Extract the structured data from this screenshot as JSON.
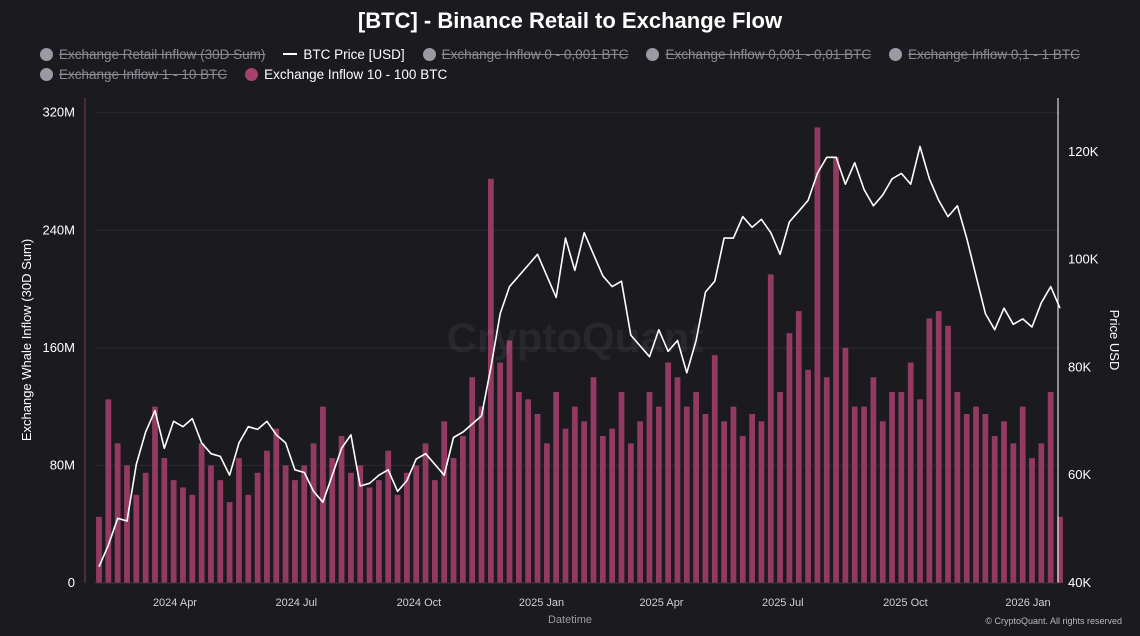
{
  "chart_data": {
    "type": "bar+line",
    "title": "[BTC] - Binance Retail to Exchange Flow",
    "xlabel": "Datetime",
    "ylabel_left": "Exchange Whale Inflow (30D Sum)",
    "ylabel_right": "Price USD",
    "watermark": "CryptoQuant",
    "credit": "© CryptoQuant. All rights reserved",
    "ylim_left": [
      0,
      330000000
    ],
    "ylim_right": [
      40000,
      130000
    ],
    "left_ticks": [
      {
        "value": 0,
        "label": "0"
      },
      {
        "value": 80000000,
        "label": "80M"
      },
      {
        "value": 160000000,
        "label": "160M"
      },
      {
        "value": 240000000,
        "label": "240M"
      },
      {
        "value": 320000000,
        "label": "320M"
      }
    ],
    "right_ticks": [
      {
        "value": 40000,
        "label": "40K"
      },
      {
        "value": 60000,
        "label": "60K"
      },
      {
        "value": 80000,
        "label": "80K"
      },
      {
        "value": 100000,
        "label": "100K"
      },
      {
        "value": 120000,
        "label": "120K"
      }
    ],
    "x_range": [
      "2024-02-01",
      "2026-01-25"
    ],
    "x_ticks": [
      {
        "date": "2024-04-01",
        "label": "2024 Apr"
      },
      {
        "date": "2024-07-01",
        "label": "2024 Jul"
      },
      {
        "date": "2024-10-01",
        "label": "2024 Oct"
      },
      {
        "date": "2025-01-01",
        "label": "2025 Jan"
      },
      {
        "date": "2025-04-01",
        "label": "2025 Apr"
      },
      {
        "date": "2025-07-01",
        "label": "2025 Jul"
      },
      {
        "date": "2025-10-01",
        "label": "2025 Oct"
      },
      {
        "date": "2026-01-01",
        "label": "2026 Jan"
      }
    ],
    "legend": [
      {
        "label": "Exchange Retail Inflow (30D Sum)",
        "marker": "dot",
        "color": "#9a9aa4",
        "active": false
      },
      {
        "label": "BTC Price [USD]",
        "marker": "line",
        "color": "#ffffff",
        "active": true
      },
      {
        "label": "Exchange Inflow 0 - 0,001 BTC",
        "marker": "dot",
        "color": "#9a9aa4",
        "active": false
      },
      {
        "label": "Exchange Inflow 0,001 - 0,01 BTC",
        "marker": "dot",
        "color": "#9a9aa4",
        "active": false
      },
      {
        "label": "Exchange Inflow 0,1 - 1 BTC",
        "marker": "dot",
        "color": "#9a9aa4",
        "active": false
      },
      {
        "label": "Exchange Inflow 1 - 10 BTC",
        "marker": "dot",
        "color": "#9a9aa4",
        "active": false
      },
      {
        "label": "Exchange Inflow 10 - 100 BTC",
        "marker": "dot",
        "color": "#a8406e",
        "active": true
      }
    ],
    "series": [
      {
        "name": "Exchange Inflow 10 - 100 BTC",
        "type": "bar",
        "axis": "left",
        "color": "#a8406e",
        "sampling": "approximate weekly values (upper envelope) read from chart",
        "x": [
          "2024-02-04",
          "2024-02-11",
          "2024-02-18",
          "2024-02-25",
          "2024-03-03",
          "2024-03-10",
          "2024-03-17",
          "2024-03-24",
          "2024-03-31",
          "2024-04-07",
          "2024-04-14",
          "2024-04-21",
          "2024-04-28",
          "2024-05-05",
          "2024-05-12",
          "2024-05-19",
          "2024-05-26",
          "2024-06-02",
          "2024-06-09",
          "2024-06-16",
          "2024-06-23",
          "2024-06-30",
          "2024-07-07",
          "2024-07-14",
          "2024-07-21",
          "2024-07-28",
          "2024-08-04",
          "2024-08-11",
          "2024-08-18",
          "2024-08-25",
          "2024-09-01",
          "2024-09-08",
          "2024-09-15",
          "2024-09-22",
          "2024-09-29",
          "2024-10-06",
          "2024-10-13",
          "2024-10-20",
          "2024-10-27",
          "2024-11-03",
          "2024-11-10",
          "2024-11-17",
          "2024-11-24",
          "2024-12-01",
          "2024-12-08",
          "2024-12-15",
          "2024-12-22",
          "2024-12-29",
          "2025-01-05",
          "2025-01-12",
          "2025-01-19",
          "2025-01-26",
          "2025-02-02",
          "2025-02-09",
          "2025-02-16",
          "2025-02-23",
          "2025-03-02",
          "2025-03-09",
          "2025-03-16",
          "2025-03-23",
          "2025-03-30",
          "2025-04-06",
          "2025-04-13",
          "2025-04-20",
          "2025-04-27",
          "2025-05-04",
          "2025-05-11",
          "2025-05-18",
          "2025-05-25",
          "2025-06-01",
          "2025-06-08",
          "2025-06-15",
          "2025-06-22",
          "2025-06-29",
          "2025-07-06",
          "2025-07-13",
          "2025-07-20",
          "2025-07-27",
          "2025-08-03",
          "2025-08-10",
          "2025-08-17",
          "2025-08-24",
          "2025-08-31",
          "2025-09-07",
          "2025-09-14",
          "2025-09-21",
          "2025-09-28",
          "2025-10-05",
          "2025-10-12",
          "2025-10-19",
          "2025-10-26",
          "2025-11-02",
          "2025-11-09",
          "2025-11-16",
          "2025-11-23",
          "2025-11-30",
          "2025-12-07",
          "2025-12-14",
          "2025-12-21",
          "2025-12-28",
          "2026-01-04",
          "2026-01-11",
          "2026-01-18",
          "2026-01-25"
        ],
        "values": [
          45000000,
          125000000,
          95000000,
          80000000,
          60000000,
          75000000,
          120000000,
          85000000,
          70000000,
          65000000,
          60000000,
          95000000,
          80000000,
          70000000,
          55000000,
          85000000,
          60000000,
          75000000,
          90000000,
          105000000,
          80000000,
          70000000,
          80000000,
          95000000,
          120000000,
          85000000,
          100000000,
          75000000,
          80000000,
          65000000,
          70000000,
          90000000,
          60000000,
          75000000,
          80000000,
          95000000,
          70000000,
          110000000,
          85000000,
          100000000,
          140000000,
          120000000,
          275000000,
          150000000,
          165000000,
          130000000,
          125000000,
          115000000,
          95000000,
          130000000,
          105000000,
          120000000,
          110000000,
          140000000,
          100000000,
          105000000,
          130000000,
          95000000,
          110000000,
          130000000,
          120000000,
          150000000,
          140000000,
          120000000,
          130000000,
          115000000,
          155000000,
          110000000,
          120000000,
          100000000,
          115000000,
          110000000,
          210000000,
          130000000,
          170000000,
          185000000,
          145000000,
          310000000,
          140000000,
          290000000,
          160000000,
          120000000,
          120000000,
          140000000,
          110000000,
          130000000,
          130000000,
          150000000,
          125000000,
          180000000,
          185000000,
          175000000,
          130000000,
          115000000,
          120000000,
          115000000,
          100000000,
          110000000,
          95000000,
          120000000,
          85000000,
          95000000,
          130000000,
          45000000
        ]
      },
      {
        "name": "BTC Price [USD]",
        "type": "line",
        "axis": "right",
        "color": "#ffffff",
        "sampling": "approximate weekly closes read from chart",
        "x": [
          "2024-02-04",
          "2024-02-11",
          "2024-02-18",
          "2024-02-25",
          "2024-03-03",
          "2024-03-10",
          "2024-03-17",
          "2024-03-24",
          "2024-03-31",
          "2024-04-07",
          "2024-04-14",
          "2024-04-21",
          "2024-04-28",
          "2024-05-05",
          "2024-05-12",
          "2024-05-19",
          "2024-05-26",
          "2024-06-02",
          "2024-06-09",
          "2024-06-16",
          "2024-06-23",
          "2024-06-30",
          "2024-07-07",
          "2024-07-14",
          "2024-07-21",
          "2024-07-28",
          "2024-08-04",
          "2024-08-11",
          "2024-08-18",
          "2024-08-25",
          "2024-09-01",
          "2024-09-08",
          "2024-09-15",
          "2024-09-22",
          "2024-09-29",
          "2024-10-06",
          "2024-10-13",
          "2024-10-20",
          "2024-10-27",
          "2024-11-03",
          "2024-11-10",
          "2024-11-17",
          "2024-11-24",
          "2024-12-01",
          "2024-12-08",
          "2024-12-15",
          "2024-12-22",
          "2024-12-29",
          "2025-01-05",
          "2025-01-12",
          "2025-01-19",
          "2025-01-26",
          "2025-02-02",
          "2025-02-09",
          "2025-02-16",
          "2025-02-23",
          "2025-03-02",
          "2025-03-09",
          "2025-03-16",
          "2025-03-23",
          "2025-03-30",
          "2025-04-06",
          "2025-04-13",
          "2025-04-20",
          "2025-04-27",
          "2025-05-04",
          "2025-05-11",
          "2025-05-18",
          "2025-05-25",
          "2025-06-01",
          "2025-06-08",
          "2025-06-15",
          "2025-06-22",
          "2025-06-29",
          "2025-07-06",
          "2025-07-13",
          "2025-07-20",
          "2025-07-27",
          "2025-08-03",
          "2025-08-10",
          "2025-08-17",
          "2025-08-24",
          "2025-08-31",
          "2025-09-07",
          "2025-09-14",
          "2025-09-21",
          "2025-09-28",
          "2025-10-05",
          "2025-10-12",
          "2025-10-19",
          "2025-10-26",
          "2025-11-02",
          "2025-11-09",
          "2025-11-16",
          "2025-11-23",
          "2025-11-30",
          "2025-12-07",
          "2025-12-14",
          "2025-12-21",
          "2025-12-28",
          "2026-01-04",
          "2026-01-11",
          "2026-01-18",
          "2026-01-25"
        ],
        "values": [
          43000,
          47000,
          52000,
          51500,
          62000,
          68000,
          72000,
          65000,
          70000,
          69000,
          70500,
          66000,
          64000,
          63500,
          60000,
          66000,
          69000,
          68500,
          70000,
          67500,
          66000,
          61000,
          60500,
          57000,
          55000,
          60000,
          65000,
          67500,
          58000,
          58500,
          60000,
          61000,
          57000,
          59000,
          63000,
          64000,
          62000,
          60000,
          67000,
          68000,
          69500,
          71000,
          80000,
          90000,
          95000,
          97000,
          99000,
          101000,
          97000,
          93000,
          104000,
          98000,
          105000,
          101000,
          97000,
          95000,
          96000,
          86000,
          84000,
          82000,
          87000,
          83000,
          85000,
          79000,
          85000,
          94000,
          96000,
          104000,
          104000,
          108000,
          106000,
          107500,
          105000,
          101000,
          107000,
          109000,
          111000,
          116000,
          119000,
          119000,
          114000,
          118000,
          113000,
          110000,
          112000,
          115000,
          116000,
          114000,
          121000,
          115000,
          111000,
          108000,
          110000,
          104000,
          97000,
          90000,
          87000,
          91000,
          88000,
          89000,
          87500,
          92000,
          95000,
          91000
        ]
      }
    ]
  }
}
